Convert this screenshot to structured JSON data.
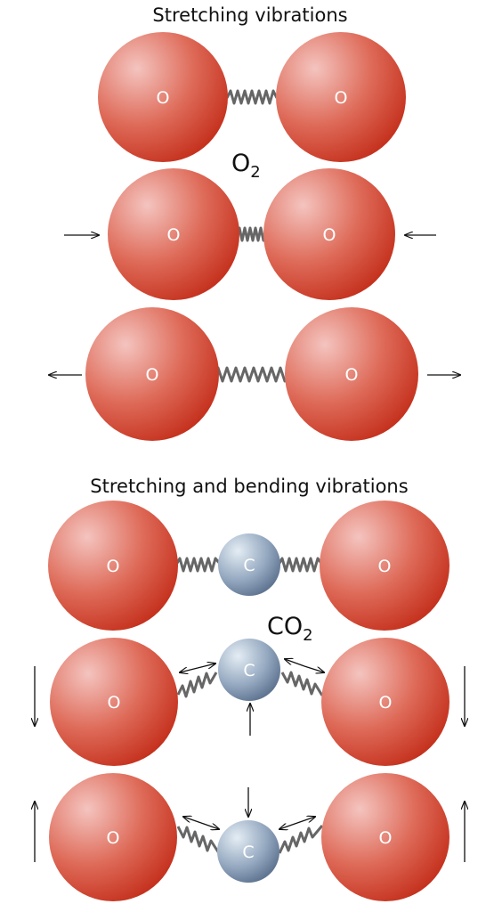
{
  "top_section": {
    "heading": "Stretching vibrations",
    "molecule": {
      "symbol": "O",
      "subscript": "2"
    },
    "rows": [
      {
        "mode": "equilibrium",
        "atom_labels": [
          "O",
          "O"
        ]
      },
      {
        "mode": "compression",
        "atom_labels": [
          "O",
          "O"
        ]
      },
      {
        "mode": "extension",
        "atom_labels": [
          "O",
          "O"
        ]
      }
    ]
  },
  "bottom_section": {
    "heading": "Stretching and bending vibrations",
    "molecule": {
      "symbol": "CO",
      "subscript": "2"
    },
    "rows": [
      {
        "mode": "equilibrium",
        "atom_labels": [
          "O",
          "C",
          "O"
        ]
      },
      {
        "mode": "bend-up",
        "atom_labels": [
          "O",
          "C",
          "O"
        ]
      },
      {
        "mode": "bend-down",
        "atom_labels": [
          "O",
          "C",
          "O"
        ]
      }
    ]
  },
  "colors": {
    "oxygen_light": "#f4c4bf",
    "oxygen_dark": "#c93a25",
    "carbon_light": "#dde8f1",
    "carbon_dark": "#5f7592",
    "spring": "#666666"
  }
}
